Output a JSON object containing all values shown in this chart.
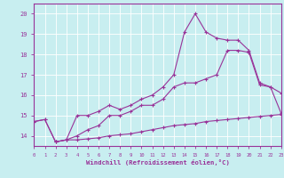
{
  "xlabel": "Windchill (Refroidissement éolien,°C)",
  "background_color": "#c8eef0",
  "line_color": "#993399",
  "xlim": [
    0,
    23
  ],
  "ylim": [
    13.5,
    20.5
  ],
  "yticks": [
    14,
    15,
    16,
    17,
    18,
    19,
    20
  ],
  "xticks": [
    0,
    1,
    2,
    3,
    4,
    5,
    6,
    7,
    8,
    9,
    10,
    11,
    12,
    13,
    14,
    15,
    16,
    17,
    18,
    19,
    20,
    21,
    22,
    23
  ],
  "series_top_x": [
    0,
    1,
    2,
    3,
    4,
    5,
    6,
    7,
    8,
    9,
    10,
    11,
    12,
    13,
    14,
    15,
    16,
    17,
    18,
    19,
    20,
    21,
    22,
    23
  ],
  "series_top_y": [
    14.7,
    14.8,
    13.7,
    13.8,
    15.0,
    15.0,
    15.2,
    15.5,
    15.3,
    15.5,
    15.8,
    16.0,
    16.4,
    17.0,
    19.1,
    20.0,
    19.1,
    18.8,
    18.7,
    18.7,
    18.2,
    16.6,
    16.4,
    16.1
  ],
  "series_mid_x": [
    0,
    1,
    2,
    3,
    4,
    5,
    6,
    7,
    8,
    9,
    10,
    11,
    12,
    13,
    14,
    15,
    16,
    17,
    18,
    19,
    20,
    21,
    22,
    23
  ],
  "series_mid_y": [
    14.7,
    14.8,
    13.7,
    13.8,
    14.0,
    14.3,
    14.5,
    15.0,
    15.0,
    15.2,
    15.5,
    15.5,
    15.8,
    16.4,
    16.6,
    16.6,
    16.8,
    17.0,
    18.2,
    18.2,
    18.1,
    16.5,
    16.4,
    15.1
  ],
  "series_bot_x": [
    2,
    3,
    4,
    5,
    6,
    7,
    8,
    9,
    10,
    11,
    12,
    13,
    14,
    15,
    16,
    17,
    18,
    19,
    20,
    21,
    22,
    23
  ],
  "series_bot_y": [
    13.7,
    13.8,
    13.8,
    13.85,
    13.9,
    14.0,
    14.05,
    14.1,
    14.2,
    14.3,
    14.4,
    14.5,
    14.55,
    14.6,
    14.7,
    14.75,
    14.8,
    14.85,
    14.9,
    14.95,
    15.0,
    15.05
  ]
}
